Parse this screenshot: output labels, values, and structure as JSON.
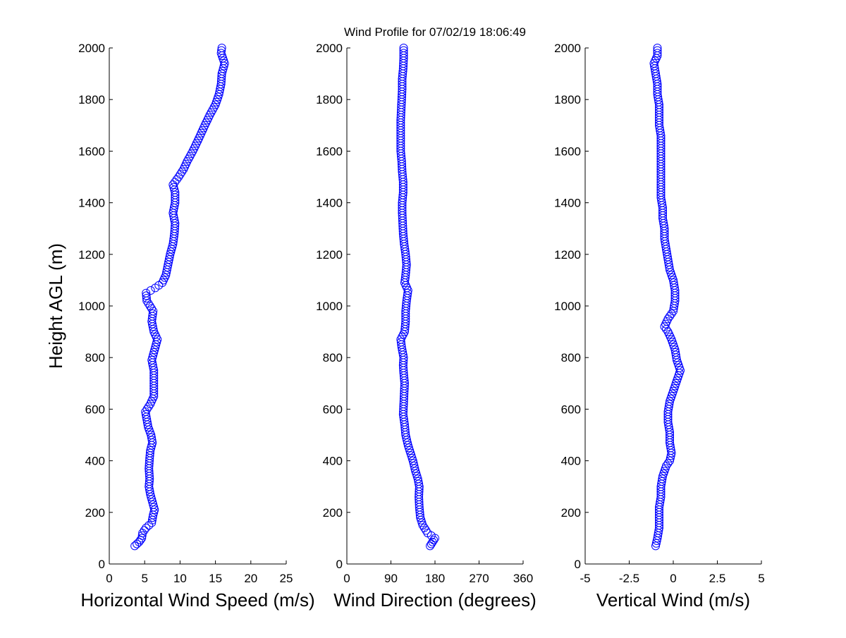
{
  "title": "Wind Profile for  07/02/19 18:06:49",
  "chart_data": [
    {
      "type": "scatter",
      "xlabel": "Horizontal Wind Speed (m/s)",
      "ylabel": "Height AGL (m)",
      "xlim": [
        0,
        25
      ],
      "ylim": [
        0,
        2000
      ],
      "xticks": [
        "0",
        "5",
        "10",
        "15",
        "20",
        "25"
      ],
      "yticks": [
        "0",
        "200",
        "400",
        "600",
        "800",
        "1000",
        "1200",
        "1400",
        "1600",
        "1800",
        "2000"
      ],
      "color": "#0000ff",
      "marker": "circle",
      "profile": [
        [
          3.6,
          70
        ],
        [
          4.2,
          85
        ],
        [
          4.6,
          100
        ],
        [
          4.7,
          120
        ],
        [
          5.2,
          140
        ],
        [
          6.0,
          160
        ],
        [
          6.2,
          190
        ],
        [
          6.4,
          210
        ],
        [
          6.1,
          240
        ],
        [
          5.8,
          270
        ],
        [
          5.6,
          300
        ],
        [
          5.7,
          330
        ],
        [
          5.6,
          370
        ],
        [
          5.7,
          410
        ],
        [
          5.8,
          440
        ],
        [
          6.1,
          470
        ],
        [
          5.9,
          500
        ],
        [
          5.5,
          530
        ],
        [
          5.3,
          560
        ],
        [
          5.1,
          590
        ],
        [
          5.8,
          620
        ],
        [
          6.3,
          650
        ],
        [
          6.3,
          700
        ],
        [
          6.3,
          750
        ],
        [
          6.0,
          790
        ],
        [
          6.4,
          830
        ],
        [
          6.8,
          870
        ],
        [
          6.3,
          900
        ],
        [
          6.0,
          940
        ],
        [
          6.2,
          980
        ],
        [
          5.3,
          1020
        ],
        [
          5.2,
          1050
        ],
        [
          6.5,
          1070
        ],
        [
          7.5,
          1090
        ],
        [
          8.0,
          1120
        ],
        [
          8.3,
          1160
        ],
        [
          8.6,
          1200
        ],
        [
          9.0,
          1240
        ],
        [
          9.2,
          1280
        ],
        [
          9.3,
          1320
        ],
        [
          9.0,
          1360
        ],
        [
          9.3,
          1400
        ],
        [
          9.3,
          1440
        ],
        [
          9.0,
          1470
        ],
        [
          9.8,
          1500
        ],
        [
          10.5,
          1530
        ],
        [
          11.0,
          1560
        ],
        [
          11.8,
          1600
        ],
        [
          12.5,
          1640
        ],
        [
          13.0,
          1670
        ],
        [
          13.5,
          1700
        ],
        [
          14.2,
          1740
        ],
        [
          15.0,
          1780
        ],
        [
          15.5,
          1820
        ],
        [
          15.8,
          1860
        ],
        [
          15.9,
          1900
        ],
        [
          16.3,
          1940
        ],
        [
          15.8,
          1980
        ],
        [
          15.9,
          2000
        ]
      ]
    },
    {
      "type": "scatter",
      "xlabel": "Wind Direction (degrees)",
      "xlim": [
        0,
        360
      ],
      "ylim": [
        0,
        2000
      ],
      "xticks": [
        "0",
        "90",
        "180",
        "270",
        "360"
      ],
      "yticks": [
        "0",
        "200",
        "400",
        "600",
        "800",
        "1000",
        "1200",
        "1400",
        "1600",
        "1800",
        "2000"
      ],
      "color": "#0000ff",
      "marker": "circle",
      "profile": [
        [
          170,
          70
        ],
        [
          175,
          85
        ],
        [
          180,
          100
        ],
        [
          165,
          120
        ],
        [
          155,
          150
        ],
        [
          150,
          180
        ],
        [
          148,
          220
        ],
        [
          147,
          260
        ],
        [
          148,
          300
        ],
        [
          145,
          330
        ],
        [
          140,
          360
        ],
        [
          135,
          400
        ],
        [
          130,
          430
        ],
        [
          125,
          460
        ],
        [
          120,
          500
        ],
        [
          118,
          540
        ],
        [
          115,
          580
        ],
        [
          116,
          620
        ],
        [
          117,
          660
        ],
        [
          118,
          700
        ],
        [
          116,
          740
        ],
        [
          115,
          770
        ],
        [
          116,
          800
        ],
        [
          112,
          840
        ],
        [
          110,
          870
        ],
        [
          118,
          900
        ],
        [
          120,
          940
        ],
        [
          120,
          980
        ],
        [
          122,
          1020
        ],
        [
          125,
          1060
        ],
        [
          118,
          1090
        ],
        [
          120,
          1120
        ],
        [
          122,
          1160
        ],
        [
          120,
          1200
        ],
        [
          117,
          1240
        ],
        [
          115,
          1280
        ],
        [
          114,
          1320
        ],
        [
          113,
          1360
        ],
        [
          113,
          1400
        ],
        [
          115,
          1440
        ],
        [
          115,
          1480
        ],
        [
          113,
          1520
        ],
        [
          112,
          1560
        ],
        [
          110,
          1600
        ],
        [
          110,
          1640
        ],
        [
          110,
          1680
        ],
        [
          110,
          1720
        ],
        [
          111,
          1760
        ],
        [
          112,
          1800
        ],
        [
          113,
          1840
        ],
        [
          113,
          1880
        ],
        [
          115,
          1920
        ],
        [
          116,
          1960
        ],
        [
          116,
          2000
        ]
      ]
    },
    {
      "type": "scatter",
      "xlabel": "Vertical Wind (m/s)",
      "xlim": [
        -5,
        5
      ],
      "ylim": [
        0,
        2000
      ],
      "xticks": [
        "-5",
        "-2.5",
        "0",
        "2.5",
        "5"
      ],
      "yticks": [
        "0",
        "200",
        "400",
        "600",
        "800",
        "1000",
        "1200",
        "1400",
        "1600",
        "1800",
        "2000"
      ],
      "color": "#0000ff",
      "marker": "circle",
      "profile": [
        [
          -1.0,
          70
        ],
        [
          -0.9,
          100
        ],
        [
          -0.8,
          140
        ],
        [
          -0.8,
          180
        ],
        [
          -0.8,
          220
        ],
        [
          -0.7,
          260
        ],
        [
          -0.7,
          300
        ],
        [
          -0.6,
          340
        ],
        [
          -0.4,
          380
        ],
        [
          -0.2,
          400
        ],
        [
          -0.1,
          430
        ],
        [
          -0.2,
          470
        ],
        [
          -0.2,
          510
        ],
        [
          -0.3,
          550
        ],
        [
          -0.3,
          590
        ],
        [
          -0.2,
          630
        ],
        [
          0.0,
          670
        ],
        [
          0.2,
          710
        ],
        [
          0.4,
          750
        ],
        [
          0.2,
          790
        ],
        [
          0.1,
          830
        ],
        [
          -0.1,
          870
        ],
        [
          -0.3,
          900
        ],
        [
          -0.5,
          920
        ],
        [
          -0.3,
          950
        ],
        [
          0.0,
          980
        ],
        [
          0.1,
          1020
        ],
        [
          0.1,
          1060
        ],
        [
          0.0,
          1100
        ],
        [
          -0.2,
          1140
        ],
        [
          -0.3,
          1180
        ],
        [
          -0.4,
          1220
        ],
        [
          -0.5,
          1260
        ],
        [
          -0.5,
          1300
        ],
        [
          -0.6,
          1340
        ],
        [
          -0.6,
          1380
        ],
        [
          -0.7,
          1420
        ],
        [
          -0.7,
          1460
        ],
        [
          -0.7,
          1500
        ],
        [
          -0.7,
          1540
        ],
        [
          -0.7,
          1580
        ],
        [
          -0.7,
          1620
        ],
        [
          -0.7,
          1660
        ],
        [
          -0.8,
          1700
        ],
        [
          -0.8,
          1740
        ],
        [
          -0.8,
          1780
        ],
        [
          -0.9,
          1820
        ],
        [
          -0.9,
          1860
        ],
        [
          -1.0,
          1900
        ],
        [
          -1.1,
          1940
        ],
        [
          -0.9,
          1970
        ],
        [
          -0.9,
          2000
        ]
      ]
    }
  ]
}
